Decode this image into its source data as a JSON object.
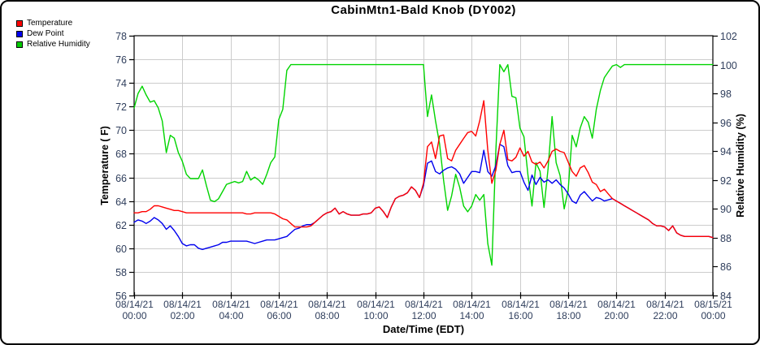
{
  "title": "CabinMtn1-Bald Knob (DY002)",
  "legend": {
    "items": [
      {
        "label": "Temperature",
        "color": "#ff0000"
      },
      {
        "label": "Dew Point",
        "color": "#0000ee"
      },
      {
        "label": "Relative Humidity",
        "color": "#00cc00"
      }
    ]
  },
  "axes": {
    "x_label": "Date/Time (EDT)",
    "y_left_label": "Temperature ( F)",
    "y_right_label": "Relative Humidity (%)"
  },
  "chart_data": {
    "type": "line",
    "title": "CabinMtn1-Bald Knob (DY002)",
    "xlabel": "Date/Time (EDT)",
    "ylabel_left": "Temperature ( F)",
    "ylabel_right": "Relative Humidity (%)",
    "grid": true,
    "legend_position": "top-left",
    "x_range_hours": [
      0,
      24
    ],
    "x_tick_interval_hours": 2,
    "x_tick_labels": [
      {
        "date": "08/14/21",
        "time": "00:00"
      },
      {
        "date": "08/14/21",
        "time": "02:00"
      },
      {
        "date": "08/14/21",
        "time": "04:00"
      },
      {
        "date": "08/14/21",
        "time": "06:00"
      },
      {
        "date": "08/14/21",
        "time": "08:00"
      },
      {
        "date": "08/14/21",
        "time": "10:00"
      },
      {
        "date": "08/14/21",
        "time": "12:00"
      },
      {
        "date": "08/14/21",
        "time": "14:00"
      },
      {
        "date": "08/14/21",
        "time": "16:00"
      },
      {
        "date": "08/14/21",
        "time": "18:00"
      },
      {
        "date": "08/14/21",
        "time": "20:00"
      },
      {
        "date": "08/14/21",
        "time": "22:00"
      },
      {
        "date": "08/15/21",
        "time": "00:00"
      }
    ],
    "ylim_left": [
      56,
      78
    ],
    "yticks_left": [
      56,
      58,
      60,
      62,
      64,
      66,
      68,
      70,
      72,
      74,
      76,
      78
    ],
    "ylim_right": [
      84,
      102
    ],
    "yticks_right": [
      84,
      86,
      88,
      90,
      92,
      94,
      96,
      98,
      100,
      102
    ],
    "sample_interval_minutes": 10,
    "series": [
      {
        "name": "Temperature",
        "axis": "left",
        "unit": "F",
        "color": "#ff0000",
        "values": [
          63,
          63,
          63.1,
          63.1,
          63.3,
          63.6,
          63.6,
          63.5,
          63.4,
          63.3,
          63.2,
          63.2,
          63.1,
          63,
          63,
          63,
          63,
          63,
          63,
          63,
          63,
          63,
          63,
          63,
          63,
          63,
          63,
          63,
          62.9,
          62.9,
          63,
          63,
          63,
          63,
          63,
          62.9,
          62.7,
          62.5,
          62.4,
          62.1,
          61.8,
          61.8,
          61.8,
          61.8,
          61.9,
          62.2,
          62.5,
          62.8,
          63,
          63.1,
          63.4,
          62.9,
          63.1,
          62.9,
          62.8,
          62.8,
          62.8,
          62.9,
          62.9,
          63,
          63.4,
          63.5,
          63.1,
          62.6,
          63.5,
          64.2,
          64.4,
          64.5,
          64.7,
          65.2,
          64.9,
          64.3,
          65.5,
          68.6,
          69,
          67.6,
          69.5,
          69.6,
          67.6,
          67.4,
          68.3,
          68.8,
          69.3,
          69.8,
          69.9,
          69.5,
          70.8,
          72.5,
          68.3,
          65.5,
          66.6,
          68.8,
          70,
          67.5,
          67.4,
          67.7,
          68.5,
          67.8,
          68.2,
          67.3,
          67.1,
          67.3,
          66.8,
          67.4,
          68.2,
          68.4,
          68.2,
          68.1,
          67.3,
          66.5,
          66.1,
          66.8,
          67,
          66.4,
          65.6,
          65.4,
          64.8,
          65,
          64.6,
          64.2,
          64,
          63.8,
          63.6,
          63.4,
          63.2,
          63,
          62.8,
          62.6,
          62.4,
          62.1,
          61.9,
          61.9,
          61.8,
          61.5,
          61.9,
          61.3,
          61.1,
          61,
          61,
          61,
          61,
          61,
          61,
          61,
          60.9
        ]
      },
      {
        "name": "Dew Point",
        "axis": "left",
        "unit": "F",
        "color": "#0000ee",
        "values": [
          62.2,
          62.4,
          62.3,
          62.1,
          62.3,
          62.6,
          62.4,
          62.1,
          61.6,
          61.9,
          61.5,
          61,
          60.4,
          60.2,
          60.3,
          60.3,
          60,
          59.9,
          60,
          60.1,
          60.2,
          60.3,
          60.5,
          60.5,
          60.6,
          60.6,
          60.6,
          60.6,
          60.6,
          60.5,
          60.4,
          60.5,
          60.6,
          60.7,
          60.7,
          60.7,
          60.8,
          60.9,
          61,
          61.3,
          61.6,
          61.7,
          61.9,
          62,
          62,
          62.2,
          62.5,
          62.8,
          63,
          63.1,
          63.4,
          62.9,
          63.1,
          62.9,
          62.8,
          62.8,
          62.8,
          62.9,
          62.9,
          63,
          63.4,
          63.5,
          63.1,
          62.6,
          63.5,
          64.2,
          64.4,
          64.5,
          64.7,
          65.2,
          64.9,
          64.3,
          65.3,
          67.2,
          67.4,
          66.5,
          66.3,
          66.6,
          66.8,
          66.9,
          66.7,
          66.3,
          65.5,
          66,
          66.5,
          66.5,
          66.4,
          68.3,
          66.5,
          66.1,
          67,
          68.8,
          68.6,
          67,
          66.4,
          66.5,
          66.5,
          65.6,
          64.9,
          66.2,
          65.4,
          66,
          65.6,
          65.8,
          65.5,
          65.8,
          65.4,
          65.1,
          64.6,
          64,
          63.8,
          64.5,
          64.8,
          64.4,
          64,
          64.3,
          64.2,
          64,
          64.1,
          64.2,
          64,
          63.8,
          63.6,
          63.4,
          63.2,
          63,
          62.8,
          62.6,
          62.4,
          62.1,
          61.9,
          61.9,
          61.8,
          61.5,
          61.9,
          61.3,
          61.1,
          61,
          61,
          61,
          61,
          61,
          61,
          61,
          60.9
        ]
      },
      {
        "name": "Relative Humidity",
        "axis": "right",
        "unit": "%",
        "color": "#00d400",
        "values": [
          97,
          98,
          98.5,
          97.9,
          97.4,
          97.5,
          97,
          96.1,
          93.9,
          95.1,
          94.9,
          93.9,
          93.3,
          92.4,
          92.1,
          92.1,
          92.1,
          92.7,
          91.6,
          90.6,
          90.5,
          90.7,
          91.2,
          91.7,
          91.8,
          91.9,
          91.8,
          91.9,
          92.6,
          92,
          92.2,
          92,
          91.7,
          92.4,
          93.2,
          93.6,
          96.2,
          96.9,
          99.6,
          100,
          100,
          100,
          100,
          100,
          100,
          100,
          100,
          100,
          100,
          100,
          100,
          100,
          100,
          100,
          100,
          100,
          100,
          100,
          100,
          100,
          100,
          100,
          100,
          100,
          100,
          100,
          100,
          100,
          100,
          100,
          100,
          100,
          100,
          96.4,
          97.9,
          96.1,
          94.5,
          92,
          89.9,
          90.9,
          92.4,
          91.5,
          90.2,
          89.8,
          90.2,
          91,
          90.6,
          91,
          87.6,
          86.1,
          94,
          100,
          99.5,
          100,
          97.8,
          97.7,
          95.6,
          95,
          92.3,
          90.2,
          93.2,
          92.6,
          90.1,
          92.8,
          96.4,
          93.2,
          92.3,
          90,
          91.3,
          95.1,
          94.3,
          95.6,
          96.4,
          96,
          94.9,
          96.9,
          98.2,
          99.1,
          99.5,
          99.9,
          100,
          99.8,
          100,
          100,
          100,
          100,
          100,
          100,
          100,
          100,
          100,
          100,
          100,
          100,
          100,
          100,
          100,
          100,
          100,
          100,
          100,
          100,
          100,
          100,
          100
        ]
      }
    ]
  },
  "style": {
    "grid_color": "#cccccc",
    "axis_color": "#000000",
    "tick_label_color": "#2f3e5c"
  }
}
